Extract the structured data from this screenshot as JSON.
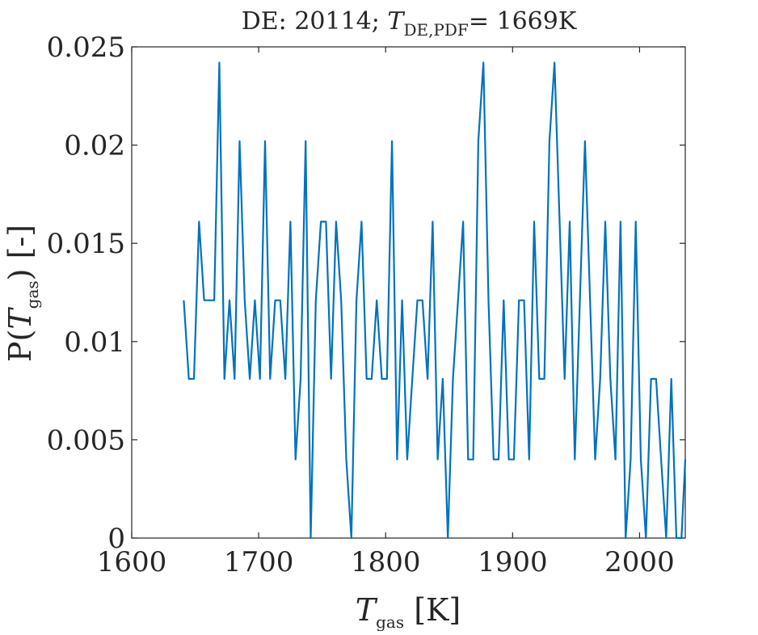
{
  "chart_data": {
    "type": "line",
    "title": {
      "prefix": "DE: 20114; ",
      "symbol": "T",
      "subscript": "DE,PDF",
      "suffix": "= 1669K"
    },
    "xlabel": {
      "symbol": "T",
      "subscript": "gas",
      "suffix": " [K]"
    },
    "ylabel": {
      "prefix": "P(",
      "symbol": "T",
      "subscript": "gas",
      "suffix": ") [-]"
    },
    "xlim": [
      1600,
      2036
    ],
    "ylim": [
      0,
      0.025
    ],
    "x_ticks": [
      "1600",
      "1700",
      "1800",
      "1900",
      "2000"
    ],
    "y_ticks": [
      "0",
      "0.005",
      "0.01",
      "0.015",
      "0.02",
      "0.025"
    ],
    "grid": false,
    "legend": "none",
    "series": [
      {
        "color": "#0072BD",
        "x": [
          1641,
          1645,
          1649,
          1653,
          1657,
          1661,
          1665,
          1669,
          1673,
          1677,
          1681,
          1685,
          1689,
          1693,
          1697,
          1701,
          1705,
          1709,
          1713,
          1717,
          1721,
          1725,
          1729,
          1733,
          1737,
          1741,
          1745,
          1749,
          1753,
          1757,
          1761,
          1765,
          1769,
          1773,
          1777,
          1781,
          1785,
          1789,
          1793,
          1797,
          1801,
          1805,
          1809,
          1813,
          1817,
          1821,
          1825,
          1829,
          1833,
          1837,
          1841,
          1845,
          1849,
          1853,
          1857,
          1861,
          1865,
          1869,
          1873,
          1877,
          1881,
          1885,
          1889,
          1893,
          1897,
          1901,
          1905,
          1909,
          1913,
          1917,
          1921,
          1925,
          1929,
          1933,
          1937,
          1941,
          1945,
          1949,
          1953,
          1957,
          1961,
          1965,
          1969,
          1973,
          1977,
          1981,
          1985,
          1989,
          1993,
          1997,
          2001,
          2005,
          2009,
          2013,
          2017,
          2021,
          2025,
          2029,
          2033,
          2036
        ],
        "y": [
          0.0121,
          0.0081,
          0.0081,
          0.0161,
          0.0121,
          0.0121,
          0.0121,
          0.0242,
          0.0081,
          0.0121,
          0.0081,
          0.0202,
          0.0121,
          0.0081,
          0.0121,
          0.0081,
          0.0202,
          0.0081,
          0.0121,
          0.0121,
          0.0081,
          0.0161,
          0.004,
          0.0081,
          0.0202,
          0.0,
          0.0121,
          0.0161,
          0.0161,
          0.0081,
          0.0161,
          0.0121,
          0.004,
          0.0,
          0.0121,
          0.0161,
          0.0081,
          0.0081,
          0.0121,
          0.0081,
          0.0081,
          0.0202,
          0.004,
          0.0121,
          0.004,
          0.0081,
          0.0121,
          0.0121,
          0.0081,
          0.0161,
          0.004,
          0.0081,
          0.0,
          0.0081,
          0.0121,
          0.0161,
          0.004,
          0.004,
          0.0202,
          0.0242,
          0.0121,
          0.004,
          0.004,
          0.0121,
          0.004,
          0.004,
          0.0121,
          0.0121,
          0.004,
          0.0161,
          0.0081,
          0.0081,
          0.0202,
          0.0242,
          0.0161,
          0.0081,
          0.0161,
          0.004,
          0.0121,
          0.0202,
          0.0121,
          0.004,
          0.0081,
          0.0161,
          0.0081,
          0.004,
          0.0161,
          0.0,
          0.004,
          0.0161,
          0.004,
          0.0,
          0.0081,
          0.0081,
          0.004,
          0.0,
          0.0081,
          0.0,
          0.0,
          0.004
        ]
      }
    ]
  }
}
